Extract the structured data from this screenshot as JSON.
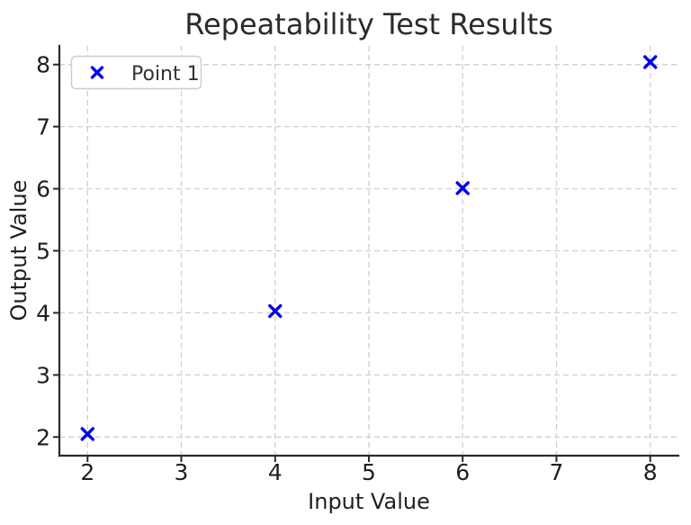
{
  "chart_data": {
    "type": "scatter",
    "title": "Repeatability Test Results",
    "xlabel": "Input Value",
    "ylabel": "Output Value",
    "xlim": [
      1.7,
      8.3
    ],
    "ylim": [
      1.7,
      8.3
    ],
    "xticks": [
      2,
      3,
      4,
      5,
      6,
      7,
      8
    ],
    "yticks": [
      2,
      3,
      4,
      5,
      6,
      7,
      8
    ],
    "grid": true,
    "grid_style": "dashed",
    "legend": {
      "position": "upper left",
      "entries": [
        {
          "label": "Point 1",
          "marker": "x",
          "color": "#0000ee"
        }
      ]
    },
    "series": [
      {
        "name": "Point 1",
        "marker": "x",
        "color": "#0000ee",
        "points": [
          {
            "x": 2,
            "y": 2.05
          },
          {
            "x": 4,
            "y": 4.03
          },
          {
            "x": 6,
            "y": 6.01
          },
          {
            "x": 8,
            "y": 8.04
          }
        ]
      }
    ]
  },
  "colors": {
    "marker": "#0000ee",
    "grid": "#cfcfcf",
    "spine": "#2a2a2a",
    "text": "#1f1f1f",
    "title": "#2b2b2b",
    "legend_border": "#cccccc",
    "background": "#ffffff"
  }
}
